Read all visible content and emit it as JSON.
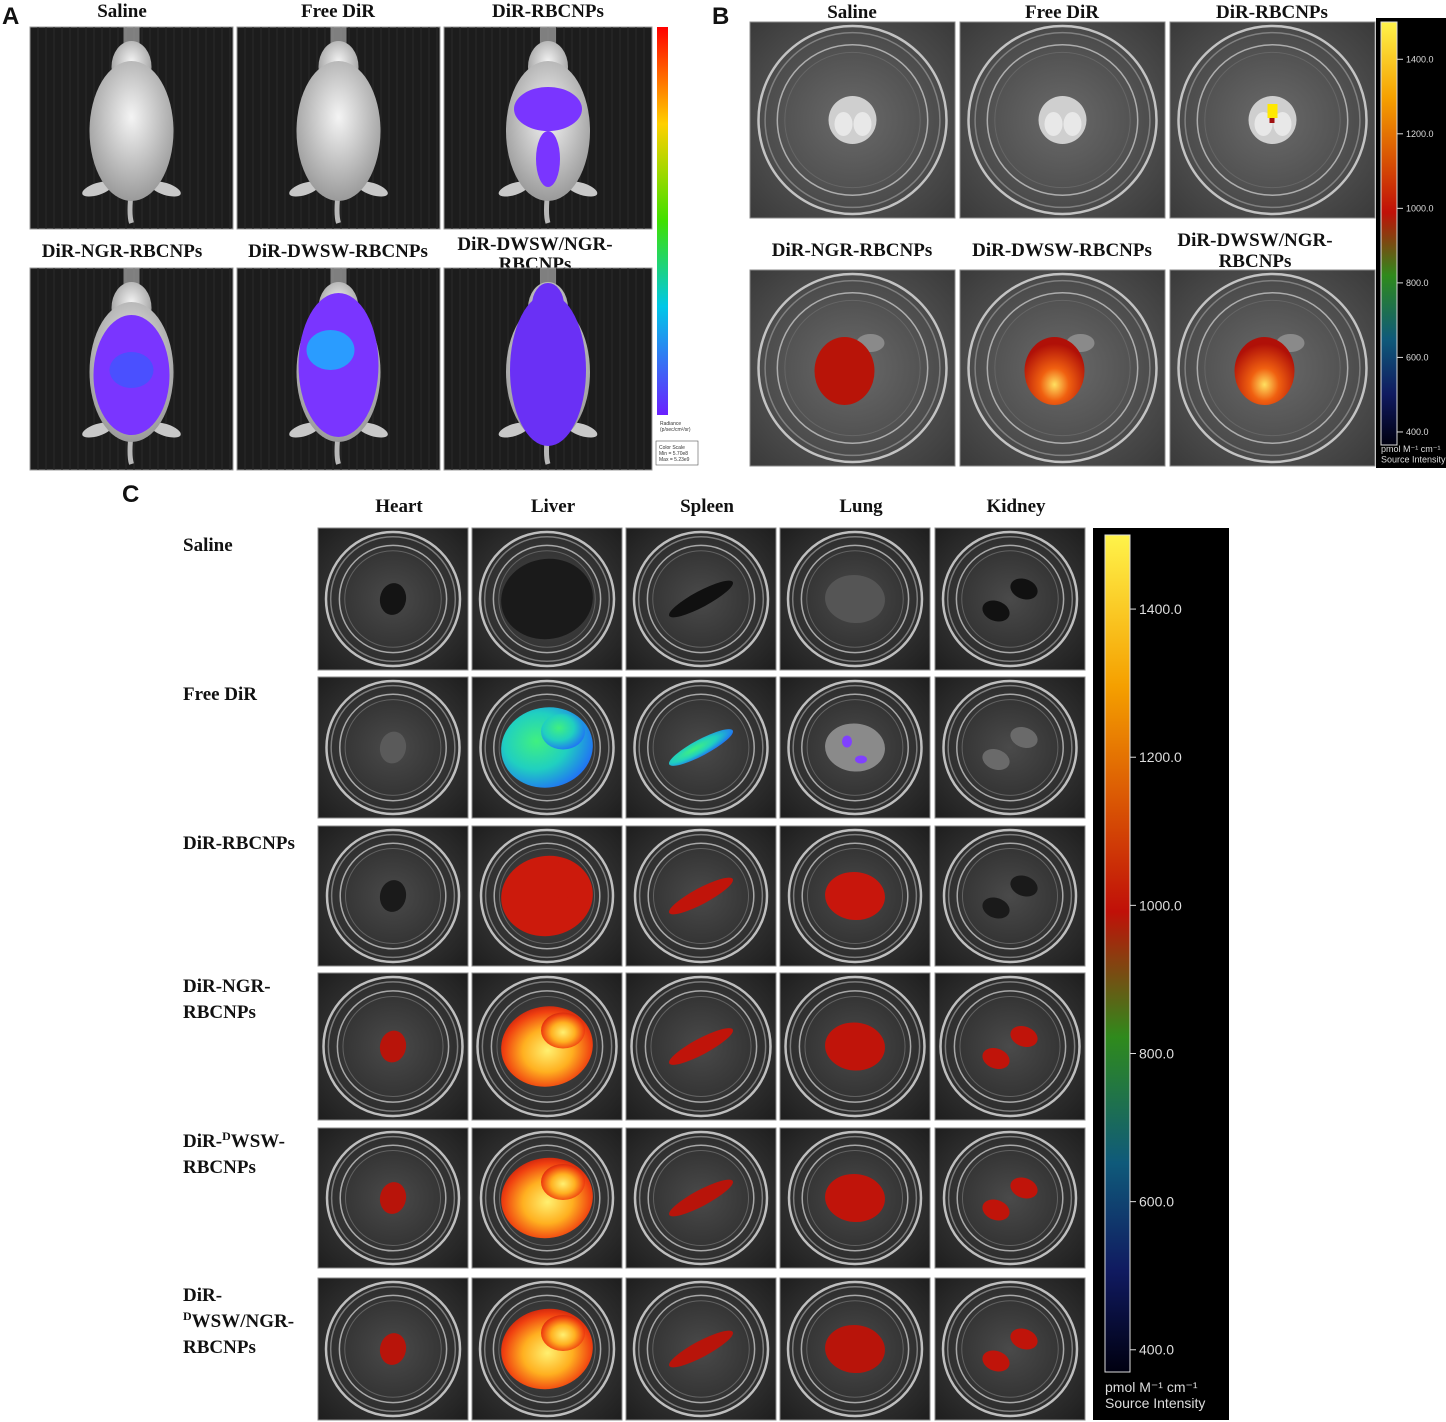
{
  "panel_a": {
    "label": "A",
    "titles": [
      [
        "Saline"
      ],
      [
        "Free DiR"
      ],
      [
        "DiR-RBCNPs"
      ],
      [
        "DiR-NGR-RBCNPs"
      ],
      [
        "DiR-DWSW-RBCNPs"
      ],
      [
        "DiR-DWSW/NGR-",
        "RBCNPs"
      ]
    ],
    "colorbar_caption": [
      "Radiance",
      "(p/sec/cm²/sr)"
    ],
    "color_scale": [
      "Color Scale",
      "Min = 5.70e8",
      "Max = 5.23e9"
    ]
  },
  "panel_b": {
    "label": "B",
    "titles": [
      [
        "Saline"
      ],
      [
        "Free DiR"
      ],
      [
        "DiR-RBCNPs"
      ],
      [
        "DiR-NGR-RBCNPs"
      ],
      [
        "DiR-DWSW-RBCNPs"
      ],
      [
        "DiR-DWSW/NGR-",
        "RBCNPs"
      ]
    ],
    "colorbar": {
      "lim": [
        365,
        1500
      ],
      "ticks": [
        {
          "value": 1400,
          "label": "1400.0"
        },
        {
          "value": 1200,
          "label": "1200.0"
        },
        {
          "value": 1000,
          "label": "1000.0"
        },
        {
          "value": 800,
          "label": "800.0"
        },
        {
          "value": 600,
          "label": "600.0"
        },
        {
          "value": 400,
          "label": "400.0"
        }
      ],
      "caption": [
        "pmol M⁻¹ cm⁻¹",
        "Source Intensity"
      ]
    }
  },
  "panel_c": {
    "label": "C",
    "columns": [
      "Heart",
      "Liver",
      "Spleen",
      "Lung",
      "Kidney"
    ],
    "rows": [
      [
        [
          {
            "text": "Saline"
          }
        ]
      ],
      [
        [
          {
            "text": "Free DiR"
          }
        ]
      ],
      [
        [
          {
            "text": "DiR-RBCNPs"
          }
        ]
      ],
      [
        [
          {
            "text": "DiR-NGR-"
          }
        ],
        [
          {
            "text": "RBCNPs"
          }
        ]
      ],
      [
        [
          {
            "text": "DiR-"
          },
          {
            "text": "D",
            "sup": true
          },
          {
            "text": "WSW-"
          }
        ],
        [
          {
            "text": "RBCNPs"
          }
        ]
      ],
      [
        [
          {
            "text": "DiR-"
          }
        ],
        [
          {
            "text": "D",
            "sup": true
          },
          {
            "text": "WSW/NGR-"
          }
        ],
        [
          {
            "text": "RBCNPs"
          }
        ]
      ]
    ],
    "colorbar": {
      "lim": [
        370,
        1500
      ],
      "ticks": [
        {
          "value": 1400,
          "label": "1400.0"
        },
        {
          "value": 1200,
          "label": "1200.0"
        },
        {
          "value": 1000,
          "label": "1000.0"
        },
        {
          "value": 800,
          "label": "800.0"
        },
        {
          "value": 600,
          "label": "600.0"
        },
        {
          "value": 400,
          "label": "400.0"
        }
      ],
      "caption": [
        "pmol M⁻¹ cm⁻¹",
        "Source Intensity"
      ]
    }
  }
}
